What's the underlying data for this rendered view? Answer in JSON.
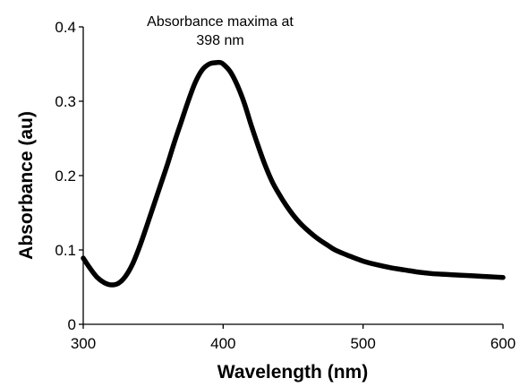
{
  "chart_data": {
    "type": "line",
    "title": "",
    "xlabel": "Wavelength (nm)",
    "ylabel": "Absorbance (au)",
    "xlim": [
      300,
      600
    ],
    "ylim": [
      0,
      0.4
    ],
    "x_ticks": [
      300,
      400,
      500,
      600
    ],
    "y_ticks": [
      0,
      0.1,
      0.2,
      0.3,
      0.4
    ],
    "x_tick_labels": [
      "300",
      "400",
      "500",
      "600"
    ],
    "y_tick_labels": [
      "0",
      "0.1",
      "0.2",
      "0.3",
      "0.4"
    ],
    "grid": false,
    "legend": "none",
    "line_color": "#000000",
    "annotation": {
      "line1": "Absorbance maxima at",
      "line2": "398 nm"
    },
    "series": [
      {
        "x": [
          300,
          305,
          310,
          315,
          320,
          325,
          330,
          335,
          340,
          345,
          350,
          355,
          360,
          365,
          370,
          375,
          380,
          385,
          390,
          395,
          398,
          400,
          405,
          410,
          415,
          420,
          425,
          430,
          435,
          440,
          445,
          450,
          455,
          460,
          465,
          470,
          475,
          480,
          490,
          500,
          510,
          520,
          530,
          540,
          550,
          560,
          570,
          580,
          590,
          600
        ],
        "values": [
          0.089,
          0.075,
          0.063,
          0.056,
          0.053,
          0.055,
          0.064,
          0.08,
          0.103,
          0.13,
          0.158,
          0.186,
          0.214,
          0.244,
          0.272,
          0.3,
          0.325,
          0.342,
          0.35,
          0.352,
          0.352,
          0.35,
          0.34,
          0.322,
          0.298,
          0.268,
          0.24,
          0.214,
          0.192,
          0.175,
          0.16,
          0.147,
          0.136,
          0.127,
          0.119,
          0.112,
          0.106,
          0.1,
          0.092,
          0.085,
          0.08,
          0.076,
          0.073,
          0.07,
          0.068,
          0.067,
          0.066,
          0.065,
          0.064,
          0.063
        ]
      }
    ]
  }
}
